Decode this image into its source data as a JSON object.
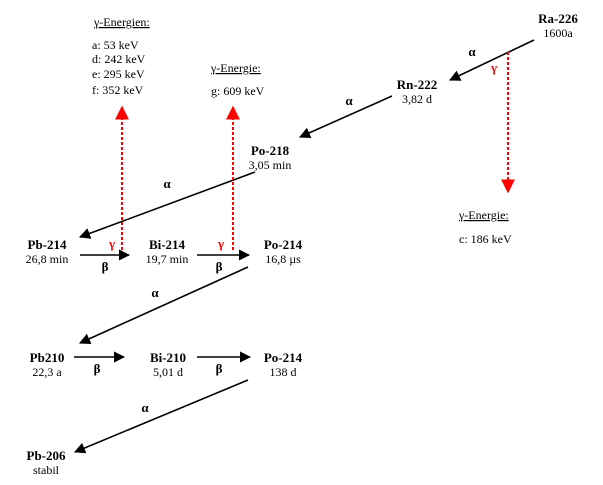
{
  "nuclides": {
    "ra226": {
      "name": "Ra-226",
      "half_life": "1600a"
    },
    "rn222": {
      "name": "Rn-222",
      "half_life": "3,82 d"
    },
    "po218": {
      "name": "Po-218",
      "half_life": "3,05 min"
    },
    "pb214": {
      "name": "Pb-214",
      "half_life": "26,8 min"
    },
    "bi214": {
      "name": "Bi-214",
      "half_life": "19,7 min"
    },
    "po214a": {
      "name": "Po-214",
      "half_life": "16,8 µs"
    },
    "pb210": {
      "name": "Pb210",
      "half_life": "22,3 a"
    },
    "bi210": {
      "name": "Bi-210",
      "half_life": "5,01 d"
    },
    "po214b": {
      "name": "Po-214",
      "half_life": "138 d"
    },
    "pb206": {
      "name": "Pb-206",
      "half_life": "stabil"
    }
  },
  "decay_labels": {
    "alpha": "α",
    "beta": "β",
    "gamma": "γ"
  },
  "gamma_boxes": {
    "left": {
      "title": "γ-Energien:",
      "lines": [
        "a:  53 keV",
        "d: 242 keV",
        "e: 295 keV",
        "f: 352 keV"
      ]
    },
    "middle": {
      "title": "γ-Energie:",
      "lines": [
        "g: 609 keV"
      ]
    },
    "right": {
      "title": "γ-Energie:",
      "lines": [
        "c: 186 keV"
      ]
    }
  },
  "colors": {
    "arrow": "#000000",
    "gamma_arrow": "#ff0000"
  }
}
